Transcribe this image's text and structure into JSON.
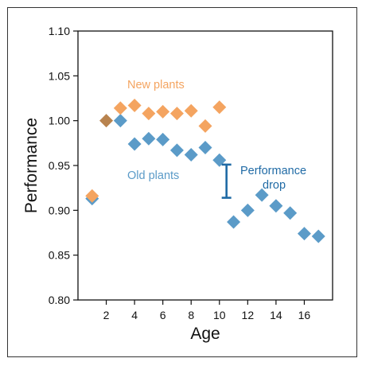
{
  "chart_data": {
    "type": "scatter",
    "xlabel": "Age",
    "ylabel": "Performance",
    "xlim": [
      0,
      18
    ],
    "ylim": [
      0.8,
      1.1
    ],
    "xticks": [
      2,
      4,
      6,
      8,
      10,
      12,
      14,
      16
    ],
    "yticks": [
      "0.80",
      "0.85",
      "0.90",
      "0.95",
      "1.00",
      "1.05",
      "1.10"
    ],
    "grid": false,
    "series": [
      {
        "name": "New plants",
        "color": "#f4a460",
        "x": [
          1,
          2,
          3,
          4,
          5,
          6,
          7,
          8,
          9,
          10
        ],
        "y": [
          0.916,
          1.0,
          1.014,
          1.017,
          1.008,
          1.01,
          1.008,
          1.011,
          0.994,
          1.015
        ]
      },
      {
        "name": "Old plants",
        "color": "#5b9bc8",
        "x": [
          1,
          2,
          3,
          4,
          5,
          6,
          7,
          8,
          9,
          10,
          11,
          12,
          13,
          14,
          15,
          16,
          17
        ],
        "y": [
          0.913,
          1.0,
          1.0,
          0.974,
          0.98,
          0.979,
          0.967,
          0.962,
          0.97,
          0.956,
          0.887,
          0.9,
          0.917,
          0.905,
          0.897,
          0.874,
          0.871
        ]
      }
    ],
    "overlap_color": "#b8834e",
    "annotations": {
      "new_label": "New plants",
      "old_label": "Old plants",
      "drop_label_line1": "Performance",
      "drop_label_line2": "drop",
      "drop_x": 10.5,
      "drop_y_top": 0.951,
      "drop_y_bottom": 0.914,
      "drop_color": "#1f6aa5"
    }
  }
}
